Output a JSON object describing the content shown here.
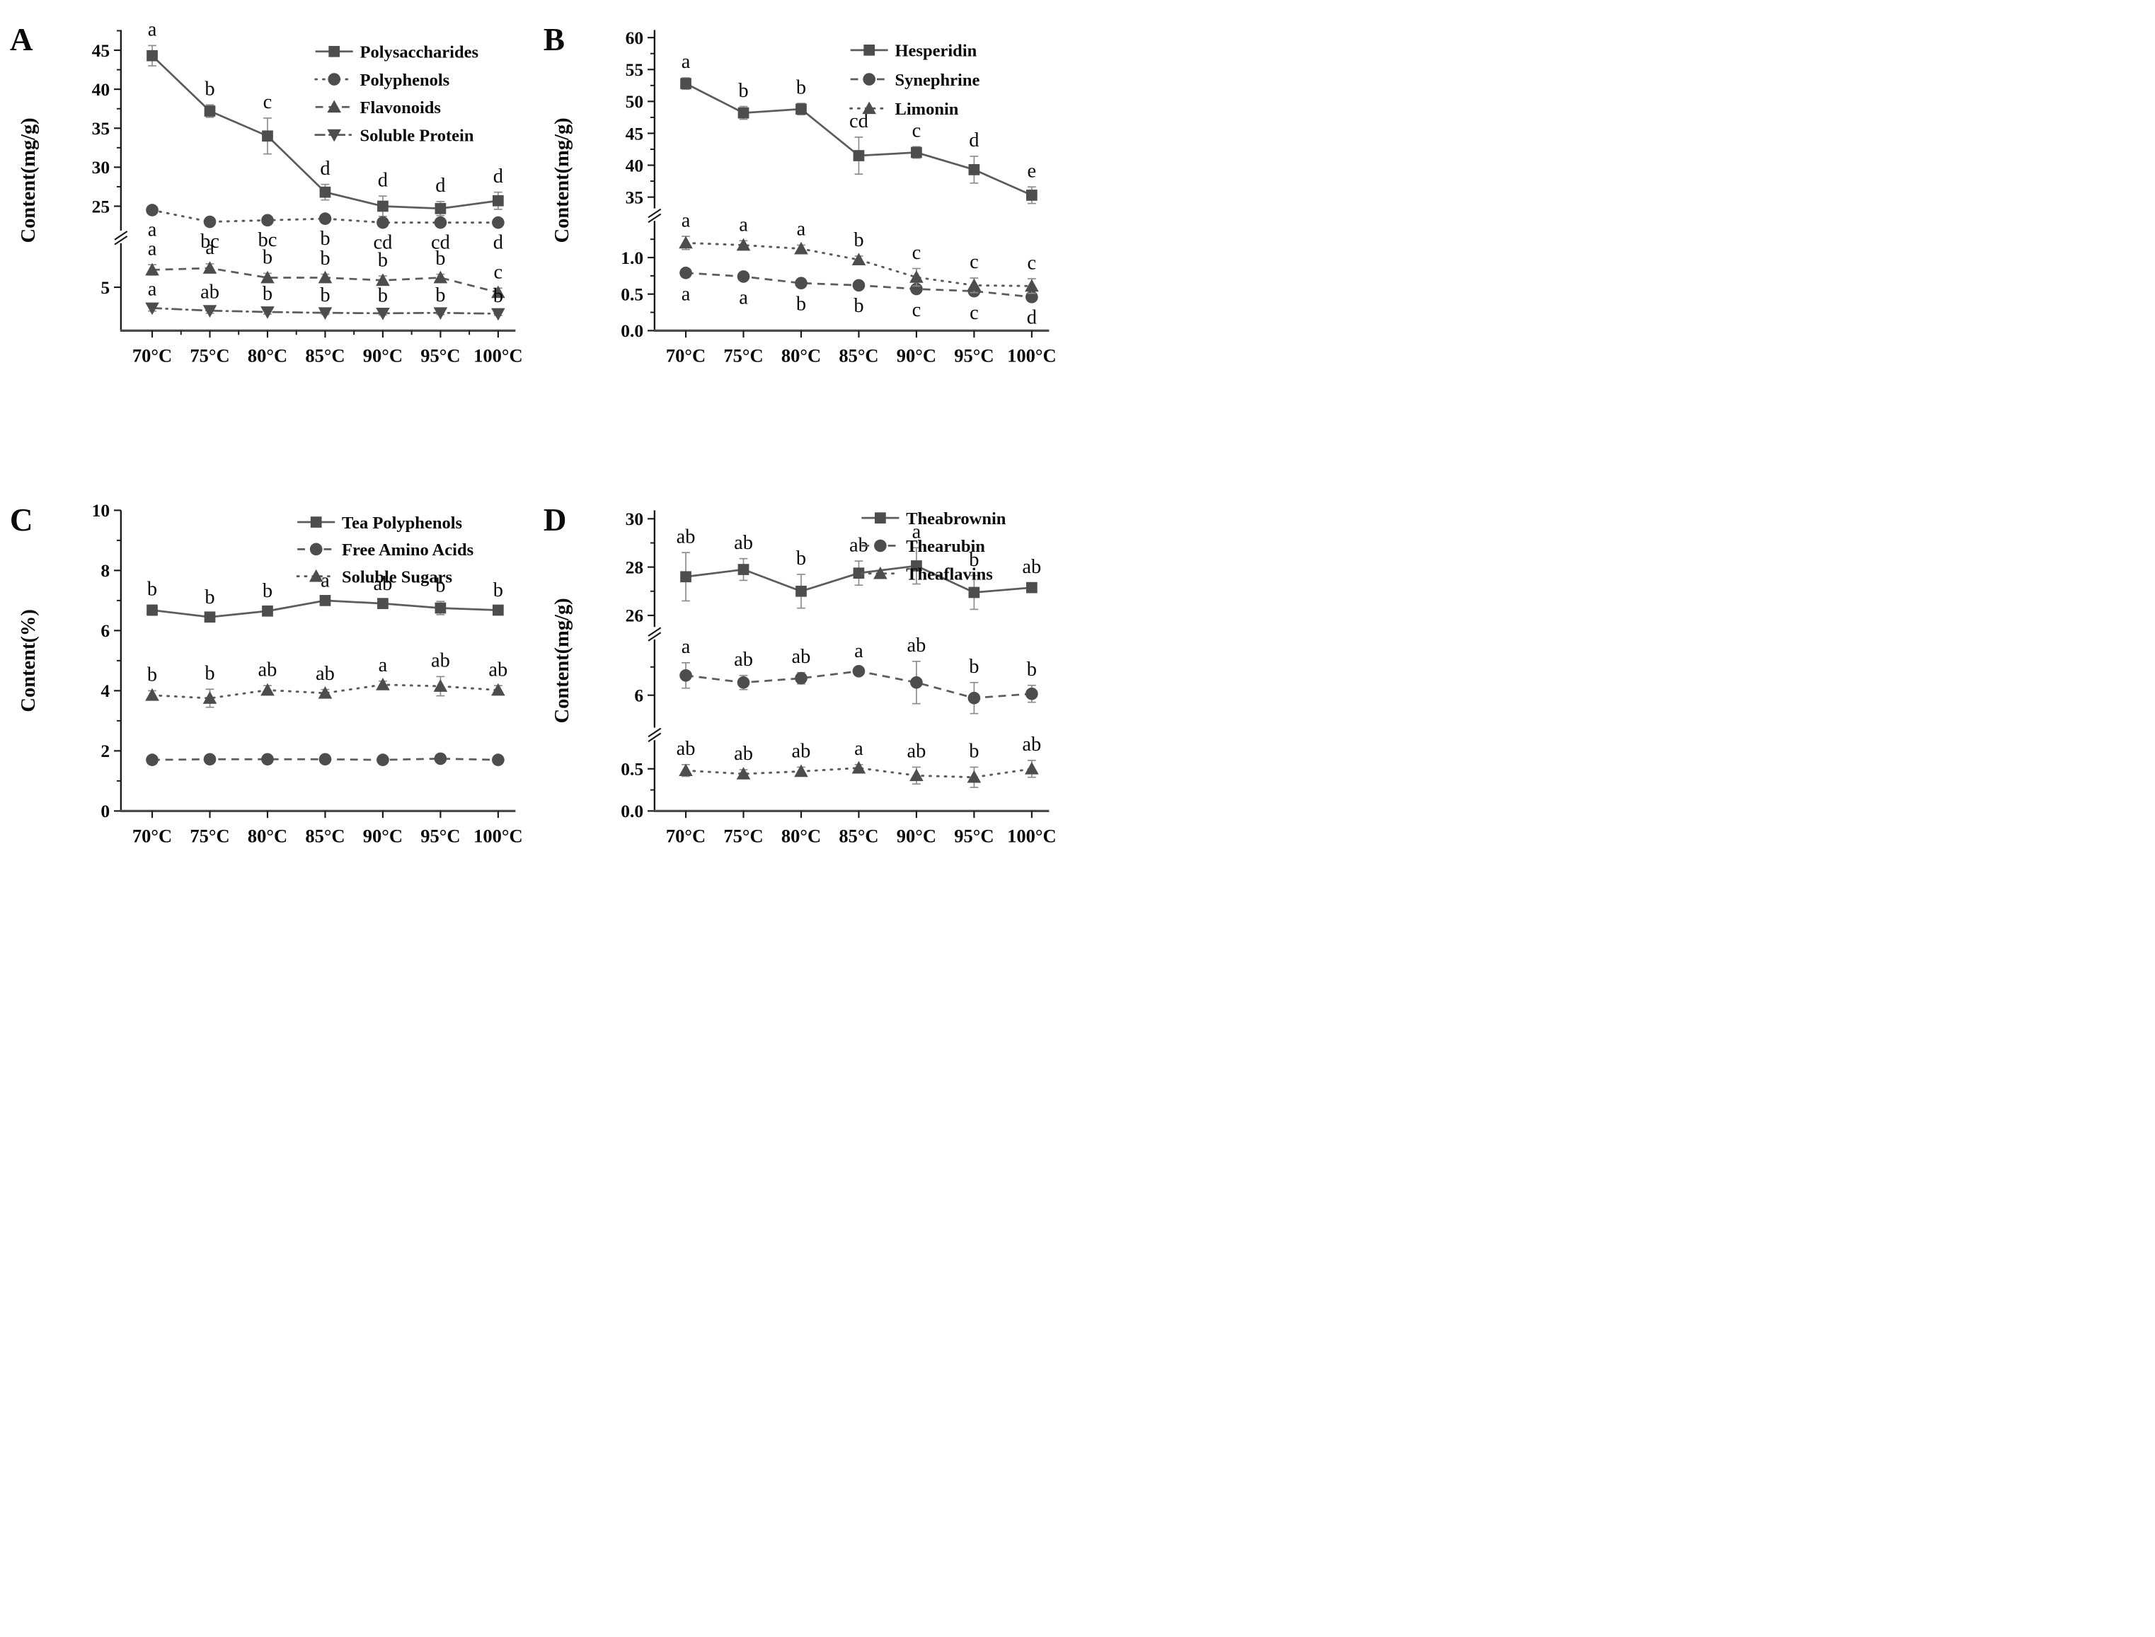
{
  "colors": {
    "marker": "#4d4d4d",
    "line": "#5c5c5c",
    "error_bar": "#8c8c8c",
    "axis": "#1a1a1a",
    "x_axis": "#4a4a4a",
    "text": "#0a0a0a"
  },
  "chart_data": [
    {
      "type": "line",
      "panel_label": "A",
      "y_title": "Content(mg/g)",
      "categories": [
        "70°C",
        "75°C",
        "80°C",
        "85°C",
        "90°C",
        "95°C",
        "100°C"
      ],
      "y_axis": {
        "broken": true,
        "major_ticks": [
          {
            "value": 25,
            "label": "25"
          },
          {
            "value": 30,
            "label": "30"
          },
          {
            "value": 35,
            "label": "35"
          },
          {
            "value": 40,
            "label": "40"
          },
          {
            "value": 45,
            "label": "45"
          },
          {
            "value": 5,
            "label": "5"
          }
        ],
        "minor_ticks": [
          27.5,
          32.5,
          37.5,
          42.5,
          47.5
        ]
      },
      "legend_position": "top-right",
      "series": [
        {
          "name": "Polysaccharides",
          "marker": "square",
          "line_style": "solid",
          "letter_position": "above",
          "values": [
            44.3,
            37.2,
            34.0,
            26.8,
            25.0,
            24.7,
            25.7
          ],
          "errors": [
            1.3,
            0.8,
            2.3,
            1.0,
            1.3,
            0.9,
            1.1
          ],
          "letters": [
            "a",
            "b",
            "c",
            "d",
            "d",
            "d",
            "d"
          ]
        },
        {
          "name": "Polyphenols",
          "marker": "circle",
          "line_style": "dotted",
          "letter_position": "below",
          "values": [
            24.5,
            23.0,
            23.2,
            23.4,
            22.9,
            22.9,
            22.9
          ],
          "errors": [
            0.3,
            0.3,
            0.3,
            0.3,
            0.3,
            0.3,
            0.3
          ],
          "letters": [
            "a",
            "bc",
            "bc",
            "b",
            "cd",
            "cd",
            "d"
          ]
        },
        {
          "name": "Flavonoids",
          "marker": "triangle-up",
          "line_style": "dashed",
          "letter_position": "above",
          "values": [
            7.0,
            7.2,
            6.1,
            6.1,
            5.8,
            6.1,
            4.4
          ],
          "errors": [
            0.6,
            0.5,
            0.5,
            0.4,
            0.5,
            0.4,
            0.5
          ],
          "letters": [
            "a",
            "a",
            "b",
            "b",
            "b",
            "b",
            "c"
          ]
        },
        {
          "name": "Soluble Protein",
          "marker": "triangle-down",
          "line_style": "dashdot",
          "letter_position": "above",
          "values": [
            2.6,
            2.3,
            2.15,
            2.05,
            2.0,
            2.05,
            1.95
          ],
          "errors": [
            0.35,
            0.3,
            0.25,
            0.2,
            0.2,
            0.2,
            0.2
          ],
          "letters": [
            "a",
            "ab",
            "b",
            "b",
            "b",
            "b",
            "b"
          ]
        }
      ]
    },
    {
      "type": "line",
      "panel_label": "B",
      "y_title": "Content(mg/g)",
      "categories": [
        "70°C",
        "75°C",
        "80°C",
        "85°C",
        "90°C",
        "95°C",
        "100°C"
      ],
      "y_axis": {
        "broken": true,
        "major_ticks": [
          {
            "value": 35,
            "label": "35"
          },
          {
            "value": 40,
            "label": "40"
          },
          {
            "value": 45,
            "label": "45"
          },
          {
            "value": 50,
            "label": "50"
          },
          {
            "value": 55,
            "label": "55"
          },
          {
            "value": 60,
            "label": "60"
          },
          {
            "value": 0,
            "label": "0.0"
          },
          {
            "value": 0.5,
            "label": "0.5"
          },
          {
            "value": 1.0,
            "label": "1.0"
          }
        ],
        "minor_ticks": [
          37.5,
          42.5,
          47.5,
          52.5,
          57.5,
          0.25,
          0.75,
          1.25
        ]
      },
      "legend_position": "top-right",
      "series": [
        {
          "name": "Hesperidin",
          "marker": "square",
          "line_style": "solid",
          "letter_position": "above",
          "values": [
            52.8,
            48.2,
            48.8,
            41.5,
            42.0,
            39.3,
            35.3
          ],
          "errors": [
            0.9,
            1.0,
            0.9,
            2.9,
            0.9,
            2.1,
            1.3
          ],
          "letters": [
            "a",
            "b",
            "b",
            "cd",
            "c",
            "d",
            "e"
          ]
        },
        {
          "name": "Synephrine",
          "marker": "circle",
          "line_style": "dashed",
          "letter_position": "below",
          "values": [
            0.79,
            0.74,
            0.65,
            0.62,
            0.57,
            0.54,
            0.46
          ],
          "errors": [
            0.05,
            0.05,
            0.05,
            0.04,
            0.05,
            0.06,
            0.04
          ],
          "letters": [
            "a",
            "a",
            "b",
            "b",
            "c",
            "c",
            "d"
          ]
        },
        {
          "name": "Limonin",
          "marker": "triangle-up",
          "line_style": "dotted",
          "letter_position": "above",
          "values": [
            1.2,
            1.17,
            1.12,
            0.97,
            0.73,
            0.62,
            0.61
          ],
          "errors": [
            0.09,
            0.06,
            0.05,
            0.05,
            0.12,
            0.1,
            0.1
          ],
          "letters": [
            "a",
            "a",
            "a",
            "b",
            "c",
            "c",
            "c"
          ]
        }
      ]
    },
    {
      "type": "line",
      "panel_label": "C",
      "y_title": "Content(%)",
      "categories": [
        "70°C",
        "75°C",
        "80°C",
        "85°C",
        "90°C",
        "95°C",
        "100°C"
      ],
      "y_axis": {
        "broken": false,
        "major_ticks": [
          {
            "value": 0,
            "label": "0"
          },
          {
            "value": 2,
            "label": "2"
          },
          {
            "value": 4,
            "label": "4"
          },
          {
            "value": 6,
            "label": "6"
          },
          {
            "value": 8,
            "label": "8"
          },
          {
            "value": 10,
            "label": "10"
          }
        ],
        "minor_ticks": [
          1,
          3,
          5,
          7,
          9
        ]
      },
      "legend_position": "top-right",
      "series": [
        {
          "name": "Tea Polyphenols",
          "marker": "square",
          "line_style": "solid",
          "letter_position": "above",
          "values": [
            6.68,
            6.45,
            6.65,
            7.0,
            6.9,
            6.75,
            6.68
          ],
          "errors": [
            0.17,
            0.13,
            0.14,
            0.13,
            0.13,
            0.22,
            0.14
          ],
          "letters": [
            "b",
            "b",
            "b",
            "a",
            "ab",
            "b",
            "b"
          ]
        },
        {
          "name": "Free Amino Acids",
          "marker": "circle",
          "line_style": "dashed",
          "letter_position": "above",
          "values": [
            1.7,
            1.72,
            1.72,
            1.72,
            1.7,
            1.74,
            1.7
          ],
          "errors": [
            0.04,
            0.04,
            0.04,
            0.04,
            0.04,
            0.04,
            0.04
          ],
          "letters": [
            "",
            "",
            "",
            "",
            "",
            "",
            ""
          ]
        },
        {
          "name": "Soluble Sugars",
          "marker": "triangle-up",
          "line_style": "dotted",
          "letter_position": "above",
          "values": [
            3.85,
            3.75,
            4.02,
            3.92,
            4.2,
            4.15,
            4.02
          ],
          "errors": [
            0.15,
            0.3,
            0.15,
            0.12,
            0.12,
            0.32,
            0.15
          ],
          "letters": [
            "b",
            "b",
            "ab",
            "ab",
            "a",
            "ab",
            "ab"
          ]
        }
      ]
    },
    {
      "type": "line",
      "panel_label": "D",
      "y_title": "Content(mg/g)",
      "categories": [
        "70°C",
        "75°C",
        "80°C",
        "85°C",
        "90°C",
        "95°C",
        "100°C"
      ],
      "y_axis": {
        "broken": true,
        "major_ticks": [
          {
            "value": 26,
            "label": "26"
          },
          {
            "value": 28,
            "label": "28"
          },
          {
            "value": 30,
            "label": "30"
          },
          {
            "value": 6,
            "label": "6"
          },
          {
            "value": 0,
            "label": "0.0"
          },
          {
            "value": 0.5,
            "label": "0.5"
          }
        ],
        "minor_ticks": [
          27,
          29,
          7,
          0.25
        ]
      },
      "legend_position": "top-right",
      "series": [
        {
          "name": "Theabrownin",
          "marker": "square",
          "line_style": "solid",
          "letter_position": "above",
          "values": [
            27.6,
            27.9,
            27.0,
            27.75,
            28.05,
            26.95,
            27.15
          ],
          "errors": [
            1.0,
            0.45,
            0.7,
            0.5,
            0.75,
            0.7,
            0.2
          ],
          "letters": [
            "ab",
            "ab",
            "b",
            "ab",
            "a",
            "b",
            "ab"
          ]
        },
        {
          "name": "Thearubin",
          "marker": "circle",
          "line_style": "dashed",
          "letter_position": "above",
          "values": [
            6.7,
            6.45,
            6.6,
            6.85,
            6.45,
            5.9,
            6.05
          ],
          "errors": [
            0.45,
            0.25,
            0.2,
            0.15,
            0.75,
            0.55,
            0.3
          ],
          "letters": [
            "a",
            "ab",
            "ab",
            "a",
            "ab",
            "b",
            "b"
          ]
        },
        {
          "name": "Theaflavins",
          "marker": "triangle-up",
          "line_style": "dotted",
          "letter_position": "above",
          "values": [
            0.48,
            0.44,
            0.47,
            0.51,
            0.42,
            0.4,
            0.5
          ],
          "errors": [
            0.07,
            0.05,
            0.05,
            0.04,
            0.1,
            0.12,
            0.1
          ],
          "letters": [
            "ab",
            "ab",
            "ab",
            "a",
            "ab",
            "b",
            "ab"
          ]
        }
      ]
    }
  ]
}
